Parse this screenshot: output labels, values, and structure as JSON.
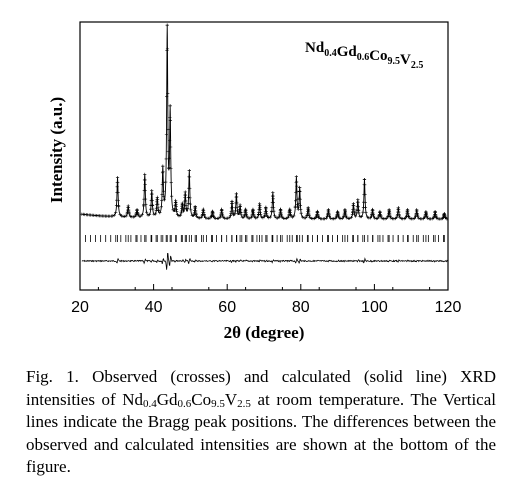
{
  "chart_data": {
    "type": "line",
    "xlabel": "2θ (degree)",
    "ylabel": "Intensity (a.u.)",
    "xlim": [
      20,
      120
    ],
    "x_ticks": [
      20,
      40,
      60,
      80,
      100,
      120
    ],
    "formula": [
      {
        "t": "Nd",
        "sub": "0.4"
      },
      {
        "t": "Gd",
        "sub": "0.6"
      },
      {
        "t": "Co",
        "sub": "9.5"
      },
      {
        "t": "V",
        "sub": "2.5"
      }
    ],
    "series": [
      {
        "role": "observed",
        "marker": "crosses",
        "peaks": [
          {
            "x": 30.2,
            "y": 0.21
          },
          {
            "x": 33.1,
            "y": 0.06
          },
          {
            "x": 35.5,
            "y": 0.04
          },
          {
            "x": 37.6,
            "y": 0.23
          },
          {
            "x": 39.5,
            "y": 0.14
          },
          {
            "x": 41.0,
            "y": 0.1
          },
          {
            "x": 42.5,
            "y": 0.25
          },
          {
            "x": 43.7,
            "y": 1.0
          },
          {
            "x": 44.5,
            "y": 0.55
          },
          {
            "x": 46.0,
            "y": 0.08
          },
          {
            "x": 47.8,
            "y": 0.07
          },
          {
            "x": 48.6,
            "y": 0.13
          },
          {
            "x": 49.7,
            "y": 0.25
          },
          {
            "x": 51.3,
            "y": 0.06
          },
          {
            "x": 53.5,
            "y": 0.05
          },
          {
            "x": 56.0,
            "y": 0.04
          },
          {
            "x": 58.5,
            "y": 0.05
          },
          {
            "x": 61.3,
            "y": 0.09
          },
          {
            "x": 62.5,
            "y": 0.13
          },
          {
            "x": 63.5,
            "y": 0.07
          },
          {
            "x": 65.0,
            "y": 0.05
          },
          {
            "x": 67.0,
            "y": 0.05
          },
          {
            "x": 68.8,
            "y": 0.08
          },
          {
            "x": 70.5,
            "y": 0.06
          },
          {
            "x": 72.4,
            "y": 0.14
          },
          {
            "x": 74.5,
            "y": 0.05
          },
          {
            "x": 77.0,
            "y": 0.05
          },
          {
            "x": 78.8,
            "y": 0.22
          },
          {
            "x": 79.7,
            "y": 0.16
          },
          {
            "x": 82.0,
            "y": 0.06
          },
          {
            "x": 84.5,
            "y": 0.04
          },
          {
            "x": 87.5,
            "y": 0.05
          },
          {
            "x": 90.0,
            "y": 0.04
          },
          {
            "x": 92.0,
            "y": 0.05
          },
          {
            "x": 94.3,
            "y": 0.08
          },
          {
            "x": 95.5,
            "y": 0.1
          },
          {
            "x": 97.3,
            "y": 0.21
          },
          {
            "x": 99.5,
            "y": 0.05
          },
          {
            "x": 101.5,
            "y": 0.04
          },
          {
            "x": 104.0,
            "y": 0.05
          },
          {
            "x": 106.5,
            "y": 0.06
          },
          {
            "x": 109.0,
            "y": 0.05
          },
          {
            "x": 111.5,
            "y": 0.05
          },
          {
            "x": 114.0,
            "y": 0.04
          },
          {
            "x": 116.5,
            "y": 0.04
          },
          {
            "x": 119.0,
            "y": 0.03
          }
        ]
      },
      {
        "role": "calculated",
        "marker": "solid line"
      },
      {
        "role": "Bragg peak positions",
        "marker": "vertical ticks"
      },
      {
        "role": "difference",
        "marker": "line at bottom"
      }
    ],
    "grid": false
  },
  "caption": {
    "label": "Fig. 1.",
    "text_a": " Observed (crosses) and calculated (solid line) XRD intensities of ",
    "formula": [
      {
        "t": "Nd",
        "sub": "0.4"
      },
      {
        "t": "Gd",
        "sub": "0.6"
      },
      {
        "t": "Co",
        "sub": "9.5"
      },
      {
        "t": "V",
        "sub": "2.5"
      }
    ],
    "text_b": " at room temperature. The Vertical lines indicate the Bragg peak positions. The differences between the observed and calculated intensities are shown at the bottom of the figure."
  }
}
